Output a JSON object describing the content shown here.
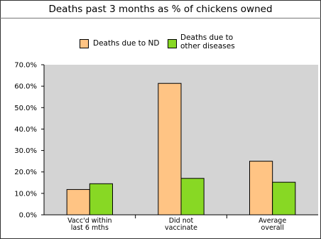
{
  "chart_data": {
    "type": "bar",
    "title": "Deaths past 3 months as % of chickens owned",
    "categories": [
      "Vacc'd within last 6 mths",
      "Did not vaccinate",
      "Average overall"
    ],
    "category_lines": [
      [
        "Vacc'd within",
        "last 6 mths"
      ],
      [
        "Did not",
        "vaccinate"
      ],
      [
        "Average",
        "overall"
      ]
    ],
    "series": [
      {
        "name": "Deaths due to ND",
        "values": [
          11.8,
          61.3,
          25.0
        ],
        "color": "#ffc484"
      },
      {
        "name": "Deaths due to other diseases",
        "name_lines": [
          "Deaths due to",
          "other diseases"
        ],
        "values": [
          14.5,
          17.0,
          15.2
        ],
        "color": "#88d824"
      }
    ],
    "ylim": [
      0,
      70
    ],
    "yticks": [
      "0.0%",
      "10.0%",
      "20.0%",
      "30.0%",
      "40.0%",
      "50.0%",
      "60.0%",
      "70.0%"
    ],
    "xlabel": "",
    "ylabel": "",
    "legend_position": "top",
    "grid": false,
    "plot_background": "#d4d4d4"
  }
}
